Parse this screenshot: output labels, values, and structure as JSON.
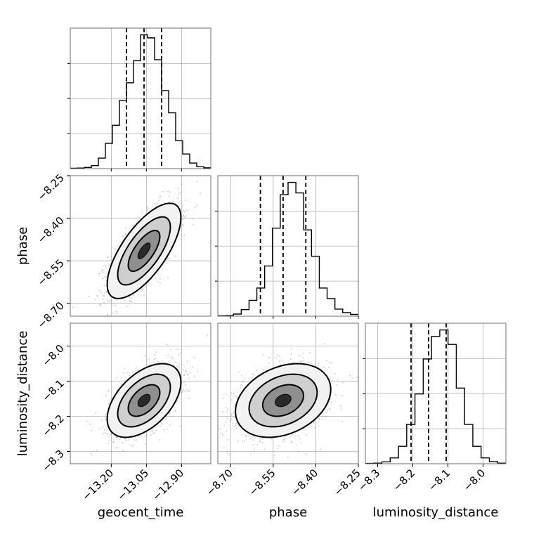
{
  "chart_data": {
    "type": "corner",
    "parameters": [
      "geocent_time",
      "phase",
      "luminosity_distance"
    ],
    "axis_labels": {
      "geocent_time": "geocent_time",
      "phase": "phase",
      "luminosity_distance": "luminosity_distance"
    },
    "ranges": {
      "geocent_time": [
        -13.375,
        -12.775
      ],
      "phase": [
        -8.745,
        -8.25
      ],
      "luminosity_distance": [
        -8.335,
        -7.935
      ]
    },
    "ticks": {
      "geocent_time": [
        {
          "v": -13.2,
          "label": "−13.20"
        },
        {
          "v": -13.05,
          "label": "−13.05"
        },
        {
          "v": -12.9,
          "label": "−12.90"
        }
      ],
      "phase": [
        {
          "v": -8.7,
          "label": "−8.70"
        },
        {
          "v": -8.55,
          "label": "−8.55"
        },
        {
          "v": -8.4,
          "label": "−8.40"
        },
        {
          "v": -8.25,
          "label": "−8.25"
        }
      ],
      "luminosity_distance": [
        {
          "v": -8.3,
          "label": "−8.3"
        },
        {
          "v": -8.2,
          "label": "−8.2"
        },
        {
          "v": -8.1,
          "label": "−8.1"
        },
        {
          "v": -8.0,
          "label": "−8.0"
        }
      ]
    },
    "quantiles": {
      "geocent_time": [
        -13.135,
        -13.06,
        -12.985
      ],
      "phase": [
        -8.595,
        -8.515,
        -8.435
      ],
      "luminosity_distance": [
        -8.205,
        -8.155,
        -8.105
      ]
    },
    "histograms": {
      "geocent_time": [
        3,
        4,
        9,
        23,
        79,
        190,
        326,
        513,
        646,
        812,
        1007,
        984,
        820,
        587,
        420,
        210,
        110,
        42,
        14,
        6
      ],
      "phase": [
        2,
        3,
        12,
        37,
        90,
        160,
        285,
        500,
        690,
        760,
        700,
        490,
        340,
        160,
        100,
        40,
        20,
        10
      ],
      "luminosity_distance": [
        2,
        4,
        13,
        40,
        120,
        270,
        480,
        720,
        875,
        920,
        820,
        520,
        270,
        120,
        40,
        15,
        4
      ]
    },
    "correlations": {
      "geocent_time|phase": 0.7,
      "geocent_time|luminosity_distance": 0.5,
      "phase|luminosity_distance": 0.3
    },
    "stds": {
      "geocent_time": 0.075,
      "phase": 0.08,
      "luminosity_distance": 0.05
    },
    "grid": true,
    "contour_levels": 4
  }
}
